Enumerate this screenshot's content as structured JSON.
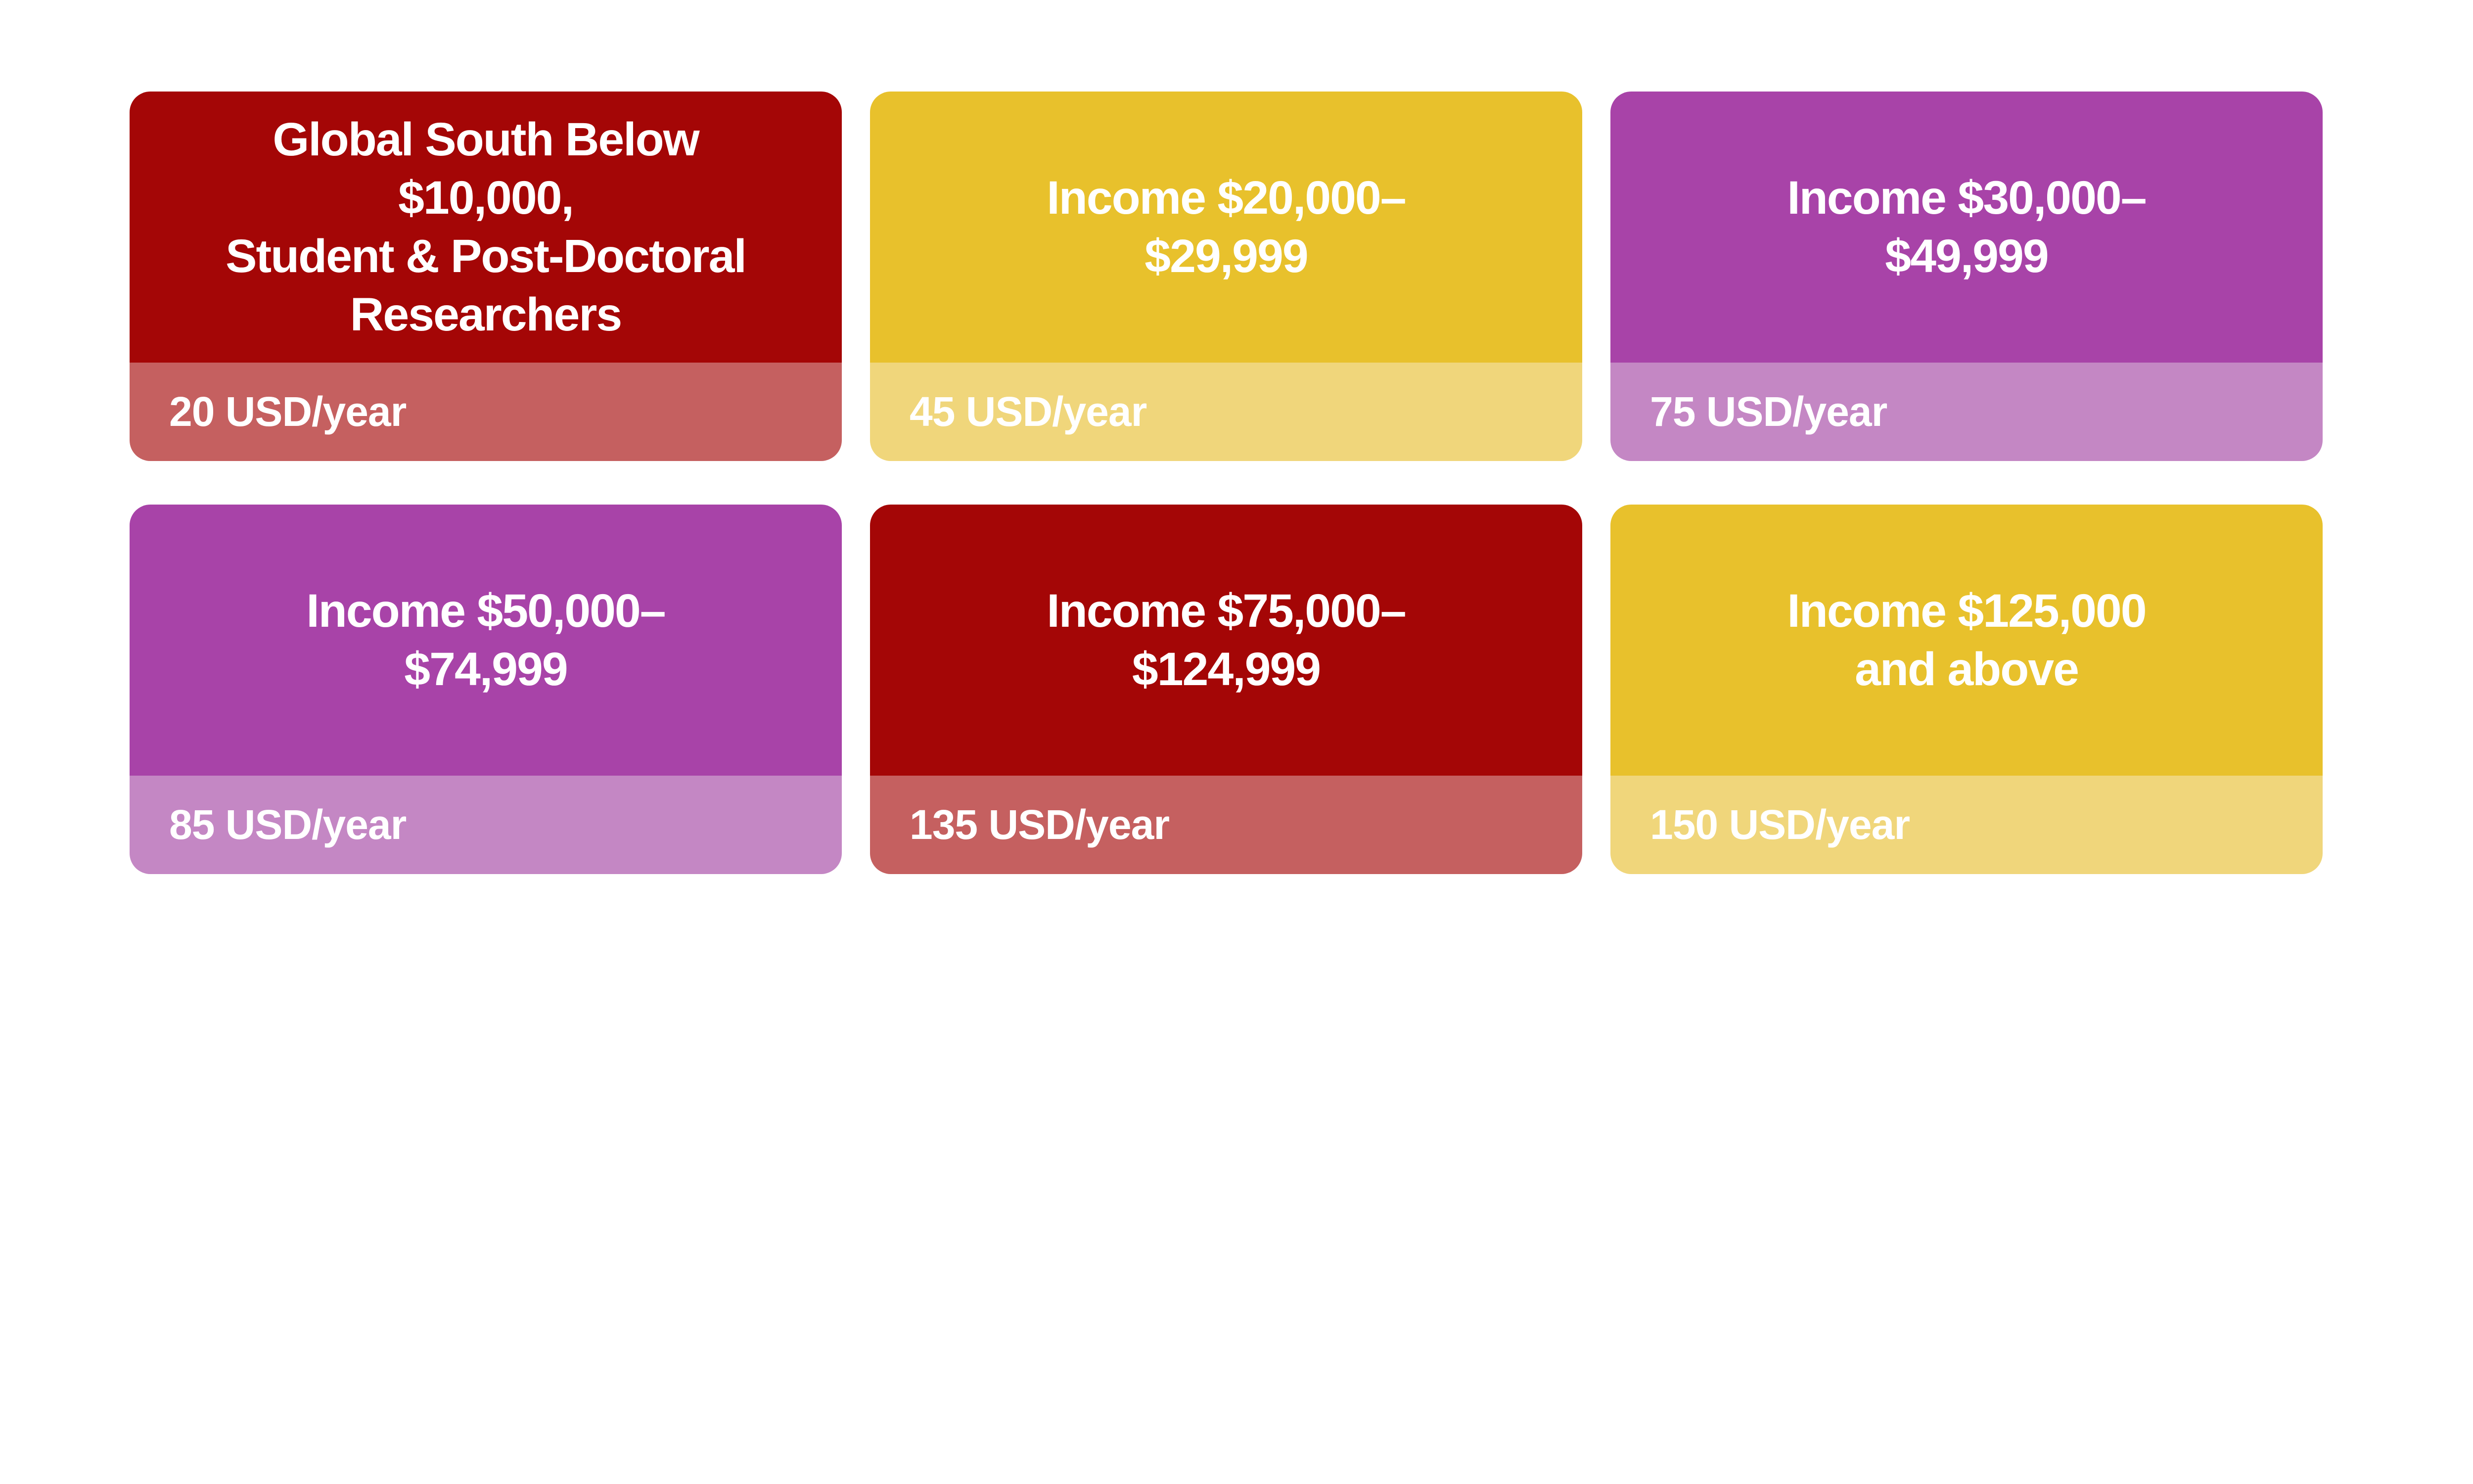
{
  "page": {
    "background_color": "#ffffff",
    "text_color": "#ffffff"
  },
  "cards": [
    {
      "title_lines": [
        "Global South Below",
        "$10,000,",
        "Student & Post-Doctoral",
        "Researchers"
      ],
      "price": "20 USD/year",
      "header_color": "#A40606",
      "footer_color": "#C56060"
    },
    {
      "title_lines": [
        "Income $20,000–",
        "$29,999"
      ],
      "price": "45 USD/year",
      "header_color": "#E8C12C",
      "footer_color": "#F0D67B"
    },
    {
      "title_lines": [
        "Income $30,000–",
        "$49,999"
      ],
      "price": "75 USD/year",
      "header_color": "#A843A8",
      "footer_color": "#C487C4"
    },
    {
      "title_lines": [
        "Income $50,000–",
        "$74,999"
      ],
      "price": "85 USD/year",
      "header_color": "#A843A8",
      "footer_color": "#C487C4"
    },
    {
      "title_lines": [
        "Income $75,000–",
        "$124,999"
      ],
      "price": "135 USD/year",
      "header_color": "#A40606",
      "footer_color": "#C56060"
    },
    {
      "title_lines": [
        "Income $125,000",
        "and above"
      ],
      "price": "150 USD/year",
      "header_color": "#E8C12C",
      "footer_color": "#F0D67B"
    }
  ]
}
